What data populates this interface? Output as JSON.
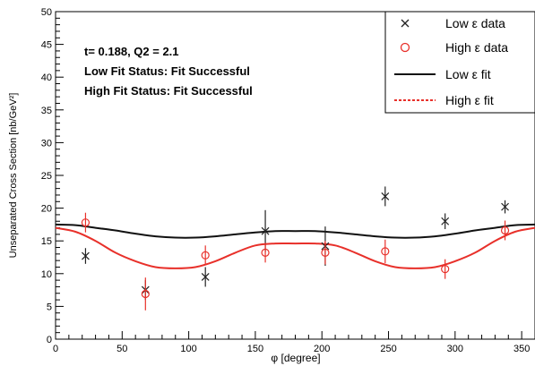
{
  "chart_data": {
    "type": "scatter",
    "xlabel": "φ [degree]",
    "ylabel": "Unseparated Cross Section [nb/GeV²]",
    "xlim": [
      0,
      360
    ],
    "ylim": [
      0,
      50
    ],
    "x_ticks": [
      "0",
      "50",
      "100",
      "150",
      "200",
      "250",
      "300",
      "350"
    ],
    "y_ticks": [
      "0",
      "5",
      "10",
      "15",
      "20",
      "25",
      "30",
      "35",
      "40",
      "45",
      "50"
    ],
    "annotations": [
      "t= 0.188, Q2 = 2.1",
      "Low Fit Status: Fit Successful",
      "High Fit Status: Fit Successful"
    ],
    "legend": {
      "placement": "top-right",
      "entries": [
        {
          "label": "Low ε data",
          "marker": "×"
        },
        {
          "label": "High ε data",
          "marker": "○"
        },
        {
          "label": "Low ε fit",
          "style": "solid"
        },
        {
          "label": "High ε fit",
          "style": "dashed"
        }
      ]
    },
    "series": [
      {
        "name": "Low ε data",
        "kind": "points",
        "color": "#222222",
        "points": [
          {
            "x": 22.5,
            "y": 12.7,
            "err": 1.2
          },
          {
            "x": 67.5,
            "y": 7.5,
            "err": 1.5
          },
          {
            "x": 112.5,
            "y": 9.5,
            "err": 1.5
          },
          {
            "x": 157.5,
            "y": 16.5,
            "err": 3.2
          },
          {
            "x": 202.5,
            "y": 14.2,
            "err": 3.0
          },
          {
            "x": 247.5,
            "y": 21.8,
            "err": 1.5
          },
          {
            "x": 292.5,
            "y": 18.0,
            "err": 1.2
          },
          {
            "x": 337.5,
            "y": 20.2,
            "err": 1.0
          }
        ]
      },
      {
        "name": "High ε data",
        "kind": "points",
        "color": "#e8302a",
        "points": [
          {
            "x": 22.5,
            "y": 17.8,
            "err": 1.5
          },
          {
            "x": 67.5,
            "y": 6.9,
            "err": 2.5
          },
          {
            "x": 112.5,
            "y": 12.8,
            "err": 1.5
          },
          {
            "x": 157.5,
            "y": 13.2,
            "err": 1.5
          },
          {
            "x": 202.5,
            "y": 13.2,
            "err": 1.8
          },
          {
            "x": 247.5,
            "y": 13.4,
            "err": 1.8
          },
          {
            "x": 292.5,
            "y": 10.7,
            "err": 1.5
          },
          {
            "x": 337.5,
            "y": 16.6,
            "err": 1.5
          }
        ]
      },
      {
        "name": "Low ε fit",
        "kind": "curve",
        "color": "#111111",
        "x": [
          0,
          15,
          30,
          45,
          60,
          75,
          90,
          105,
          120,
          135,
          150,
          165,
          180,
          195,
          210,
          225,
          240,
          255,
          270,
          285,
          300,
          315,
          330,
          345,
          360
        ],
        "y": [
          17.5,
          17.4,
          17.0,
          16.6,
          16.1,
          15.7,
          15.5,
          15.5,
          15.7,
          16.0,
          16.3,
          16.5,
          16.5,
          16.5,
          16.3,
          16.0,
          15.7,
          15.5,
          15.5,
          15.7,
          16.1,
          16.6,
          17.0,
          17.4,
          17.5
        ]
      },
      {
        "name": "High ε fit",
        "kind": "curve",
        "color": "#e8302a",
        "x": [
          0,
          15,
          30,
          45,
          60,
          75,
          90,
          105,
          120,
          135,
          150,
          165,
          180,
          195,
          210,
          225,
          240,
          255,
          270,
          285,
          300,
          315,
          330,
          345,
          360
        ],
        "y": [
          17.0,
          16.4,
          15.0,
          13.2,
          11.9,
          11.0,
          10.8,
          11.0,
          11.9,
          13.2,
          14.3,
          14.6,
          14.6,
          14.6,
          14.3,
          13.2,
          11.9,
          11.0,
          10.8,
          11.0,
          11.9,
          13.2,
          15.0,
          16.4,
          17.0
        ]
      }
    ]
  }
}
